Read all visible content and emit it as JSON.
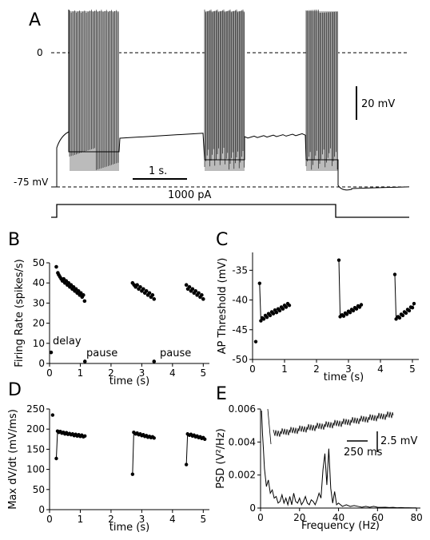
{
  "panel_a": {
    "letter": "A",
    "zero_label": "0",
    "rest_label": "-75 mV",
    "voltage_scale_label": "20 mV",
    "time_scale_label": "1 s.",
    "current_label": "1000 pA"
  },
  "chart_data": [
    {
      "panel": "B",
      "type": "scatter",
      "xlabel": "time (s)",
      "ylabel": "Firing Rate (spikes/s)",
      "xlim": [
        0,
        5.2
      ],
      "ylim": [
        0,
        50
      ],
      "xticks": [
        "0",
        "1",
        "2",
        "3",
        "4",
        "5"
      ],
      "yticks": [
        "0",
        "10",
        "20",
        "30",
        "40",
        "50"
      ],
      "annotations": [
        "delay",
        "pause",
        "pause"
      ],
      "series": [
        {
          "values": [
            [
              0.05,
              5.5
            ],
            [
              1.15,
              1.0
            ],
            [
              3.4,
              1.0
            ]
          ]
        },
        {
          "values": [
            [
              0.22,
              48
            ],
            [
              0.27,
              45
            ],
            [
              0.3,
              44
            ],
            [
              0.34,
              43
            ],
            [
              0.38,
              42
            ],
            [
              0.42,
              41
            ],
            [
              0.46,
              42
            ],
            [
              0.5,
              40
            ],
            [
              0.54,
              41
            ],
            [
              0.58,
              39
            ],
            [
              0.62,
              40
            ],
            [
              0.66,
              38
            ],
            [
              0.7,
              39
            ],
            [
              0.74,
              37
            ],
            [
              0.78,
              38
            ],
            [
              0.82,
              36
            ],
            [
              0.86,
              37
            ],
            [
              0.9,
              35
            ],
            [
              0.94,
              36
            ],
            [
              0.98,
              34
            ],
            [
              1.02,
              35
            ],
            [
              1.06,
              33
            ],
            [
              1.1,
              34
            ],
            [
              1.14,
              31
            ]
          ]
        },
        {
          "values": [
            [
              2.7,
              40
            ],
            [
              2.75,
              39
            ],
            [
              2.8,
              38
            ],
            [
              2.85,
              39
            ],
            [
              2.9,
              37
            ],
            [
              2.95,
              38
            ],
            [
              3.0,
              36
            ],
            [
              3.05,
              37
            ],
            [
              3.1,
              35
            ],
            [
              3.15,
              36
            ],
            [
              3.2,
              34
            ],
            [
              3.25,
              35
            ],
            [
              3.3,
              33
            ],
            [
              3.35,
              34
            ],
            [
              3.4,
              32
            ]
          ]
        },
        {
          "values": [
            [
              4.45,
              39
            ],
            [
              4.5,
              37
            ],
            [
              4.55,
              38
            ],
            [
              4.6,
              36
            ],
            [
              4.65,
              37
            ],
            [
              4.7,
              35
            ],
            [
              4.75,
              36
            ],
            [
              4.8,
              34
            ],
            [
              4.85,
              35
            ],
            [
              4.9,
              33
            ],
            [
              4.95,
              34
            ],
            [
              5.0,
              32
            ]
          ]
        }
      ]
    },
    {
      "panel": "C",
      "type": "line",
      "xlabel": "time (s)",
      "ylabel": "AP Threshold (mV)",
      "xlim": [
        0,
        5.2
      ],
      "ylim": [
        -50,
        -32
      ],
      "xticks": [
        "0",
        "1",
        "2",
        "3",
        "4",
        "5"
      ],
      "yticks": [
        "-50",
        "-45",
        "-40",
        "-35"
      ],
      "series": [
        {
          "values": [
            [
              0.1,
              -47
            ]
          ]
        },
        {
          "values": [
            [
              0.22,
              -37.2
            ],
            [
              0.26,
              -43.5
            ],
            [
              0.3,
              -43.0
            ],
            [
              0.35,
              -43.2
            ],
            [
              0.4,
              -42.6
            ],
            [
              0.45,
              -42.9
            ],
            [
              0.5,
              -42.3
            ],
            [
              0.55,
              -42.6
            ],
            [
              0.6,
              -42.0
            ],
            [
              0.65,
              -42.3
            ],
            [
              0.7,
              -41.7
            ],
            [
              0.75,
              -42.1
            ],
            [
              0.8,
              -41.5
            ],
            [
              0.85,
              -41.8
            ],
            [
              0.9,
              -41.2
            ],
            [
              0.95,
              -41.5
            ],
            [
              1.0,
              -40.9
            ],
            [
              1.05,
              -41.2
            ],
            [
              1.1,
              -40.6
            ],
            [
              1.15,
              -40.9
            ]
          ]
        },
        {
          "values": [
            [
              2.7,
              -33.3
            ],
            [
              2.74,
              -42.8
            ],
            [
              2.8,
              -42.5
            ],
            [
              2.85,
              -42.7
            ],
            [
              2.9,
              -42.2
            ],
            [
              2.95,
              -42.4
            ],
            [
              3.0,
              -41.9
            ],
            [
              3.05,
              -42.1
            ],
            [
              3.1,
              -41.6
            ],
            [
              3.15,
              -41.8
            ],
            [
              3.2,
              -41.3
            ],
            [
              3.25,
              -41.5
            ],
            [
              3.3,
              -41.0
            ],
            [
              3.35,
              -41.2
            ],
            [
              3.4,
              -40.8
            ]
          ]
        },
        {
          "values": [
            [
              4.45,
              -35.7
            ],
            [
              4.49,
              -43.2
            ],
            [
              4.55,
              -42.8
            ],
            [
              4.6,
              -43.0
            ],
            [
              4.65,
              -42.4
            ],
            [
              4.7,
              -42.6
            ],
            [
              4.75,
              -42.0
            ],
            [
              4.8,
              -42.2
            ],
            [
              4.85,
              -41.6
            ],
            [
              4.9,
              -41.8
            ],
            [
              4.95,
              -41.2
            ],
            [
              5.0,
              -41.3
            ],
            [
              5.05,
              -40.6
            ]
          ]
        }
      ]
    },
    {
      "panel": "D",
      "type": "line",
      "xlabel": "time (s)",
      "ylabel": "Max dV/dt (mV/ms)",
      "xlim": [
        0,
        5.2
      ],
      "ylim": [
        0,
        250
      ],
      "xticks": [
        "0",
        "1",
        "2",
        "3",
        "4",
        "5"
      ],
      "yticks": [
        "0",
        "50",
        "100",
        "150",
        "200",
        "250"
      ],
      "series": [
        {
          "values": [
            [
              0.1,
              235
            ]
          ]
        },
        {
          "values": [
            [
              0.22,
              127
            ],
            [
              0.26,
              195
            ],
            [
              0.3,
              192
            ],
            [
              0.35,
              194
            ],
            [
              0.4,
              190
            ],
            [
              0.45,
              192
            ],
            [
              0.5,
              188
            ],
            [
              0.55,
              191
            ],
            [
              0.6,
              187
            ],
            [
              0.65,
              189
            ],
            [
              0.7,
              186
            ],
            [
              0.75,
              188
            ],
            [
              0.8,
              184
            ],
            [
              0.85,
              187
            ],
            [
              0.9,
              183
            ],
            [
              0.95,
              186
            ],
            [
              1.0,
              182
            ],
            [
              1.05,
              185
            ],
            [
              1.1,
              181
            ],
            [
              1.15,
              183
            ]
          ]
        },
        {
          "values": [
            [
              2.7,
              88
            ],
            [
              2.74,
              192
            ],
            [
              2.8,
              188
            ],
            [
              2.85,
              190
            ],
            [
              2.9,
              186
            ],
            [
              2.95,
              188
            ],
            [
              3.0,
              184
            ],
            [
              3.05,
              186
            ],
            [
              3.1,
              182
            ],
            [
              3.15,
              184
            ],
            [
              3.2,
              180
            ],
            [
              3.25,
              182
            ],
            [
              3.3,
              179
            ],
            [
              3.35,
              181
            ],
            [
              3.4,
              178
            ]
          ]
        },
        {
          "values": [
            [
              4.45,
              112
            ],
            [
              4.49,
              188
            ],
            [
              4.55,
              185
            ],
            [
              4.6,
              187
            ],
            [
              4.65,
              183
            ],
            [
              4.7,
              185
            ],
            [
              4.75,
              181
            ],
            [
              4.8,
              183
            ],
            [
              4.85,
              179
            ],
            [
              4.9,
              181
            ],
            [
              4.95,
              177
            ],
            [
              5.0,
              179
            ],
            [
              5.05,
              175
            ]
          ]
        }
      ]
    },
    {
      "panel": "E",
      "type": "line",
      "xlabel": "Frequency (Hz)",
      "ylabel": "PSD (V²/Hz)",
      "xlim": [
        0,
        82
      ],
      "ylim": [
        0,
        0.006
      ],
      "xticks": [
        "0",
        "20",
        "40",
        "60",
        "80"
      ],
      "yticks": [
        "0",
        "0.002",
        "0.004",
        "0.006"
      ],
      "inset_labels": [
        "2.5 mV",
        "250 ms"
      ],
      "x": [
        0.5,
        1,
        1.5,
        2,
        3,
        4,
        5,
        6,
        7,
        8,
        9,
        10,
        11,
        12,
        13,
        14,
        15,
        16,
        17,
        18,
        19,
        20,
        21,
        22,
        23,
        24,
        25,
        26,
        27,
        28,
        29,
        30,
        31,
        32,
        33,
        34,
        35,
        36,
        37,
        38,
        39,
        40,
        42,
        44,
        46,
        48,
        50,
        52,
        54,
        56,
        58,
        60,
        62,
        64,
        66,
        68,
        70,
        72,
        74,
        76,
        78,
        80
      ],
      "series": [
        {
          "values": [
            0.0059,
            0.0045,
            0.0035,
            0.0024,
            0.0013,
            0.0017,
            0.0009,
            0.0011,
            0.0006,
            0.0007,
            0.0003,
            0.0004,
            0.0008,
            0.0003,
            0.0006,
            0.0002,
            0.0007,
            0.0002,
            0.0009,
            0.0004,
            0.0003,
            0.0006,
            0.0002,
            0.0004,
            0.0007,
            0.0003,
            0.0002,
            0.0005,
            0.0004,
            0.0002,
            0.0005,
            0.0009,
            0.0006,
            0.0023,
            0.0033,
            0.0014,
            0.0036,
            0.0012,
            0.0003,
            0.001,
            0.0002,
            0.0003,
            0.0001,
            0.0002,
            0.0001,
            0.00015,
            0.0001,
            5e-05,
            0.0001,
            5e-05,
            0.0001,
            5e-05,
            4e-05,
            5e-05,
            3e-05,
            4e-05,
            2e-05,
            3e-05,
            2e-05,
            2e-05,
            1e-05,
            1e-05
          ]
        }
      ]
    }
  ]
}
